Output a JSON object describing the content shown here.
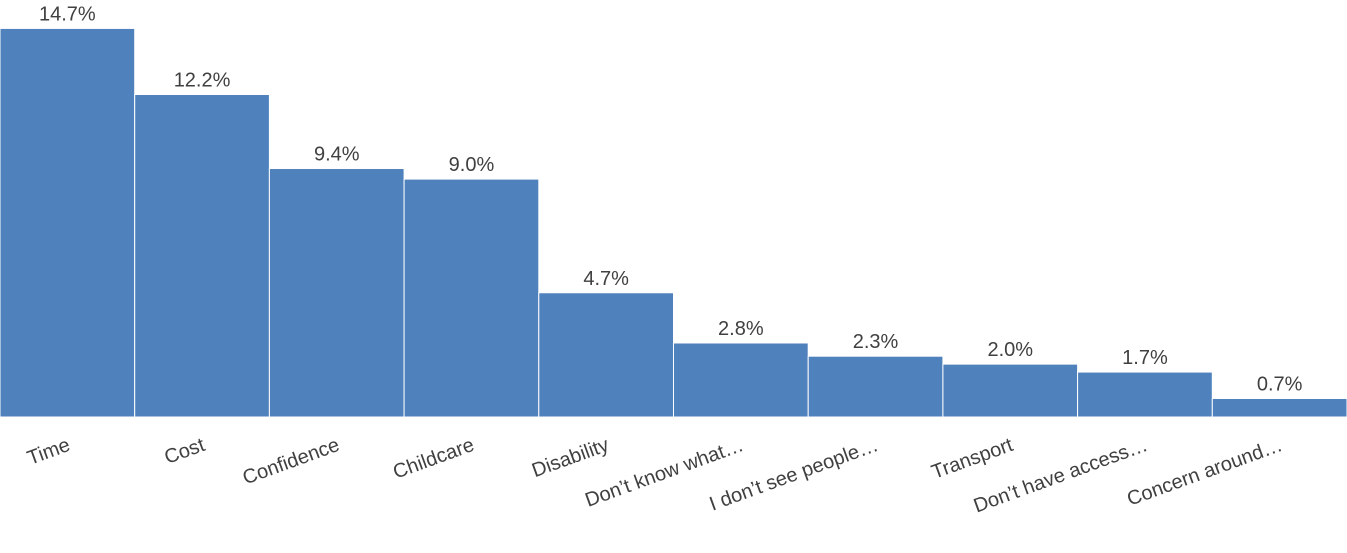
{
  "chart_data": {
    "type": "bar",
    "categories": [
      "Time",
      "Cost",
      "Confidence",
      "Childcare",
      "Disability",
      "Don’t know what…",
      "I don’t see people…",
      "Transport",
      "Don’t have access…",
      "Concern around…"
    ],
    "values": [
      14.7,
      12.2,
      9.4,
      9.0,
      4.7,
      2.8,
      2.3,
      2.0,
      1.7,
      0.7
    ],
    "data_labels": [
      "14.7%",
      "12.2%",
      "9.4%",
      "9.0%",
      "4.7%",
      "2.8%",
      "2.3%",
      "2.0%",
      "1.7%",
      "0.7%"
    ],
    "title": "",
    "xlabel": "",
    "ylabel": "",
    "ylim": [
      0,
      15.7
    ],
    "grid": false,
    "legend": "none",
    "bar_color": "#4f81bd"
  }
}
